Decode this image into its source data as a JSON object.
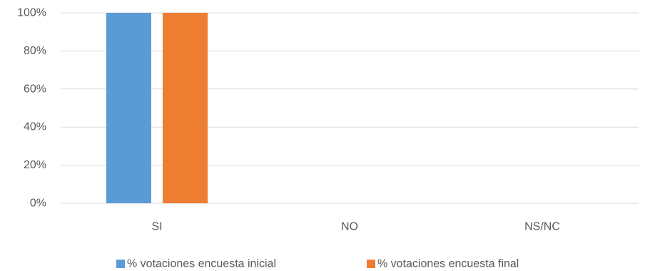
{
  "chart_data": {
    "type": "bar",
    "categories": [
      "SI",
      "NO",
      "NS/NC"
    ],
    "series": [
      {
        "name": "% votaciones encuesta inicial",
        "values": [
          100,
          0,
          0
        ],
        "color": "#5B9BD5"
      },
      {
        "name": "% votaciones encuesta final",
        "values": [
          100,
          0,
          0
        ],
        "color": "#ED7D31"
      }
    ],
    "ylim": [
      0,
      100
    ],
    "yticks": [
      "0%",
      "20%",
      "40%",
      "60%",
      "80%",
      "100%"
    ],
    "ytick_values": [
      0,
      20,
      40,
      60,
      80,
      100
    ],
    "grid": true,
    "gridline_color": "#D9D9D9",
    "legend_placement": "bottom"
  }
}
